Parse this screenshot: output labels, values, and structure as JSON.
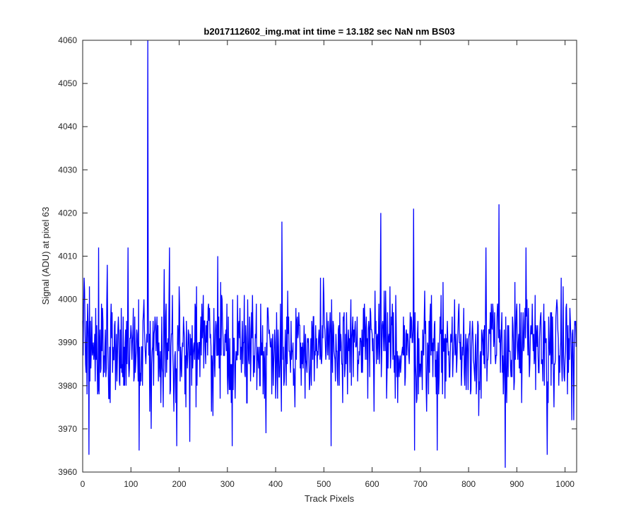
{
  "chart_data": {
    "type": "line",
    "title": "b2017112602_img.mat int time = 13.182 sec  NaN nm BS03",
    "xlabel": "Track Pixels",
    "ylabel": "Signal (ADU) at pixel 63",
    "xlim": [
      0,
      1024
    ],
    "ylim": [
      3960,
      4060
    ],
    "xticks": [
      0,
      100,
      200,
      300,
      400,
      500,
      600,
      700,
      800,
      900,
      1000
    ],
    "yticks": [
      3960,
      3970,
      3980,
      3990,
      4000,
      4010,
      4020,
      4030,
      4040,
      4050,
      4060
    ],
    "grid": false,
    "legend": "none",
    "line_color": "#0000ff",
    "series": [
      {
        "n_points": 1024,
        "baseline_mean": 3989,
        "noise_amplitude": 8,
        "notable_points": [
          {
            "x": 3,
            "y": 4005
          },
          {
            "x": 13,
            "y": 3964
          },
          {
            "x": 33,
            "y": 4012
          },
          {
            "x": 51,
            "y": 4008
          },
          {
            "x": 94,
            "y": 4012
          },
          {
            "x": 117,
            "y": 3965
          },
          {
            "x": 135,
            "y": 4060
          },
          {
            "x": 142,
            "y": 3970
          },
          {
            "x": 169,
            "y": 4007
          },
          {
            "x": 180,
            "y": 4012
          },
          {
            "x": 195,
            "y": 3966
          },
          {
            "x": 222,
            "y": 3967
          },
          {
            "x": 280,
            "y": 4010
          },
          {
            "x": 310,
            "y": 3966
          },
          {
            "x": 380,
            "y": 3969
          },
          {
            "x": 413,
            "y": 4018
          },
          {
            "x": 515,
            "y": 3966
          },
          {
            "x": 618,
            "y": 4020
          },
          {
            "x": 686,
            "y": 4021
          },
          {
            "x": 688,
            "y": 3965
          },
          {
            "x": 735,
            "y": 3965
          },
          {
            "x": 836,
            "y": 4012
          },
          {
            "x": 863,
            "y": 4022
          },
          {
            "x": 876,
            "y": 3961
          },
          {
            "x": 919,
            "y": 4012
          },
          {
            "x": 963,
            "y": 3964
          },
          {
            "x": 1018,
            "y": 3972
          }
        ]
      }
    ]
  }
}
